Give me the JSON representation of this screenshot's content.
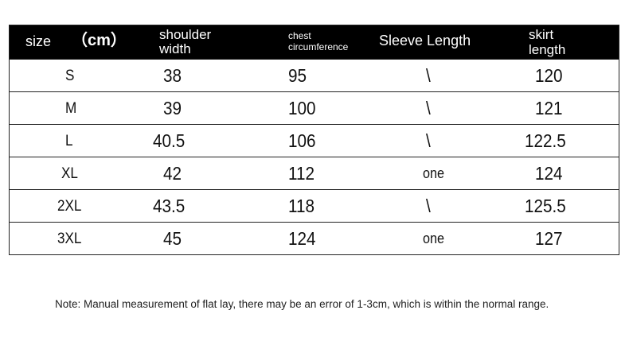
{
  "table": {
    "headers": {
      "size": "size",
      "unit": "（cm）",
      "shoulder": [
        "shoulder",
        "width"
      ],
      "chest": [
        "chest",
        "circumference"
      ],
      "sleeve": "Sleeve Length",
      "skirt": [
        "skirt",
        "length"
      ]
    },
    "rows": [
      {
        "size": "S",
        "shoulder": "38",
        "chest": "95",
        "sleeve": "\\",
        "skirt": "120"
      },
      {
        "size": "M",
        "shoulder": "39",
        "chest": "100",
        "sleeve": "\\",
        "skirt": "121"
      },
      {
        "size": "L",
        "shoulder": "40.5",
        "chest": "106",
        "sleeve": "\\",
        "skirt": "122.5"
      },
      {
        "size": "XL",
        "shoulder": "42",
        "chest": "112",
        "sleeve": "one",
        "skirt": "124"
      },
      {
        "size": "2XL",
        "shoulder": "43.5",
        "chest": "118",
        "sleeve": "\\",
        "skirt": "125.5"
      },
      {
        "size": "3XL",
        "shoulder": "45",
        "chest": "124",
        "sleeve": "one",
        "skirt": "127"
      }
    ]
  },
  "note": "Note: Manual measurement of flat lay, there may be an error of 1-3cm, which is within the normal range."
}
